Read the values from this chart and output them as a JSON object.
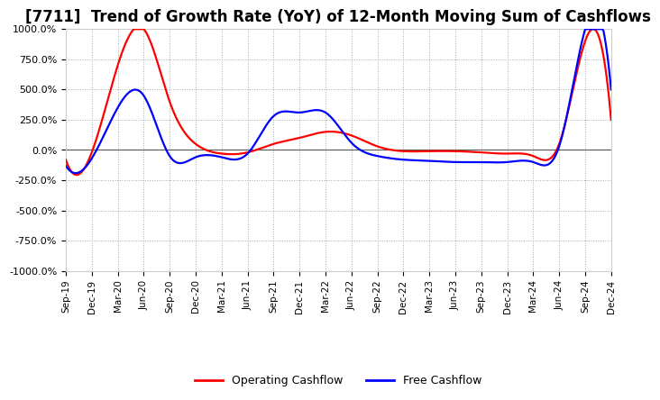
{
  "title": "[7711]  Trend of Growth Rate (YoY) of 12-Month Moving Sum of Cashflows",
  "title_fontsize": 12,
  "ylim": [
    -1000,
    1000
  ],
  "yticks": [
    -1000,
    -750,
    -500,
    -250,
    0,
    250,
    500,
    750,
    1000
  ],
  "yticklabels": [
    "-1000.0%",
    "-750.0%",
    "-500.0%",
    "-250.0%",
    "0.0%",
    "250.0%",
    "500.0%",
    "750.0%",
    "1000.0%"
  ],
  "background_color": "#ffffff",
  "plot_background_color": "#ffffff",
  "grid_color": "#aaaaaa",
  "operating_color": "#ff0000",
  "free_color": "#0000ff",
  "legend_labels": [
    "Operating Cashflow",
    "Free Cashflow"
  ],
  "x_labels": [
    "Sep-19",
    "Dec-19",
    "Mar-20",
    "Jun-20",
    "Sep-20",
    "Dec-20",
    "Mar-21",
    "Jun-21",
    "Sep-21",
    "Dec-21",
    "Mar-22",
    "Jun-22",
    "Sep-22",
    "Dec-22",
    "Mar-23",
    "Jun-23",
    "Sep-23",
    "Dec-23",
    "Mar-24",
    "Jun-24",
    "Sep-24",
    "Dec-24"
  ],
  "operating_cashflow": [
    -80,
    -20,
    700,
    1000,
    400,
    50,
    -30,
    -20,
    50,
    100,
    150,
    120,
    30,
    -10,
    -10,
    -10,
    -20,
    -30,
    -50,
    50,
    900,
    250
  ],
  "free_cashflow": [
    -130,
    -70,
    350,
    450,
    -50,
    -60,
    -60,
    -30,
    280,
    310,
    310,
    60,
    -50,
    -80,
    -90,
    -100,
    -100,
    -100,
    -100,
    30,
    1000,
    500
  ]
}
